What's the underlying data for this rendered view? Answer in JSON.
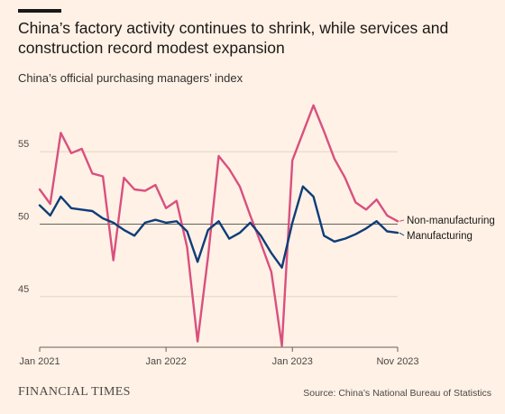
{
  "title": "China’s factory activity continues to shrink, while services and construction record modest expansion",
  "subtitle": "China’s official purchasing managers’ index",
  "footer": {
    "logo": "FINANCIAL TIMES",
    "source": "Source: China’s National Bureau of Statistics"
  },
  "colors": {
    "background": "#fff1e5",
    "non_manufacturing": "#d9507f",
    "manufacturing": "#0e3d79",
    "grid": "#e6d4c4",
    "baseline": "#66605c"
  },
  "chart_data": {
    "type": "line",
    "ylim": [
      41.5,
      58.5
    ],
    "yticks": [
      45,
      50,
      55
    ],
    "ytick_labels": [
      "45",
      "50",
      "55"
    ],
    "reference_line": 50,
    "xticks": [
      "Jan 2021",
      "Jan 2022",
      "Jan 2023",
      "Nov 2023"
    ],
    "x": [
      "2021-01",
      "2021-02",
      "2021-03",
      "2021-04",
      "2021-05",
      "2021-06",
      "2021-07",
      "2021-08",
      "2021-09",
      "2021-10",
      "2021-11",
      "2021-12",
      "2022-01",
      "2022-02",
      "2022-03",
      "2022-04",
      "2022-05",
      "2022-06",
      "2022-07",
      "2022-08",
      "2022-09",
      "2022-10",
      "2022-11",
      "2022-12",
      "2023-01",
      "2023-02",
      "2023-03",
      "2023-04",
      "2023-05",
      "2023-06",
      "2023-07",
      "2023-08",
      "2023-09",
      "2023-10",
      "2023-11"
    ],
    "series": [
      {
        "name": "Non-manufacturing",
        "values": [
          52.4,
          51.4,
          56.3,
          54.9,
          55.2,
          53.5,
          53.3,
          47.5,
          53.2,
          52.4,
          52.3,
          52.7,
          51.1,
          51.6,
          48.4,
          41.9,
          47.8,
          54.7,
          53.8,
          52.6,
          50.6,
          48.7,
          46.7,
          41.6,
          54.4,
          56.3,
          58.2,
          56.4,
          54.5,
          53.2,
          51.5,
          51.0,
          51.7,
          50.6,
          50.2
        ]
      },
      {
        "name": "Manufacturing",
        "values": [
          51.3,
          50.6,
          51.9,
          51.1,
          51.0,
          50.9,
          50.4,
          50.1,
          49.6,
          49.2,
          50.1,
          50.3,
          50.1,
          50.2,
          49.5,
          47.4,
          49.6,
          50.2,
          49.0,
          49.4,
          50.1,
          49.2,
          48.0,
          47.0,
          50.1,
          52.6,
          51.9,
          49.2,
          48.8,
          49.0,
          49.3,
          49.7,
          50.2,
          49.5,
          49.4
        ]
      }
    ]
  }
}
